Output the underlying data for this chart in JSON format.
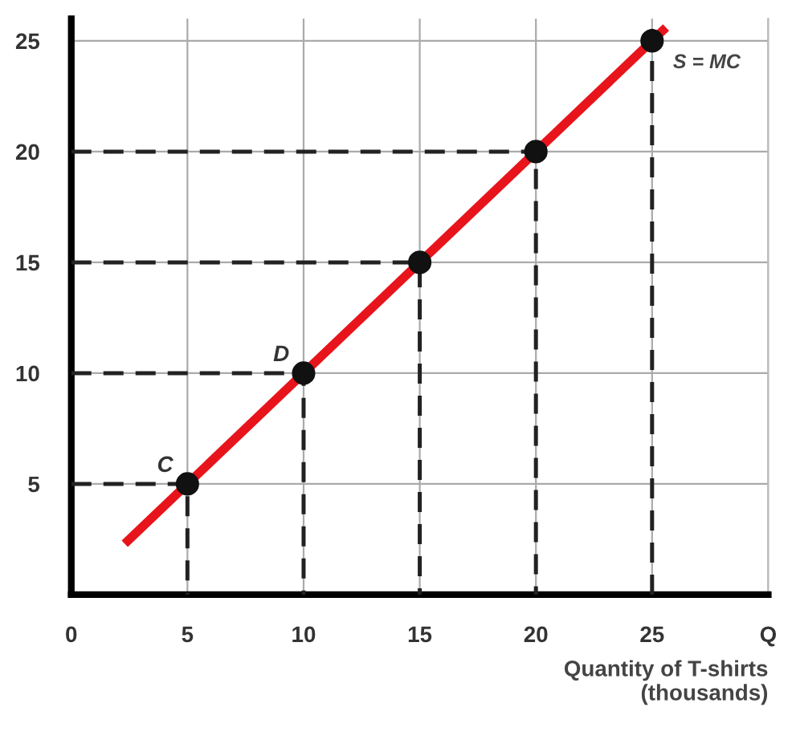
{
  "chart_data": {
    "type": "line",
    "xlabel": "Quantity of T-shirts\n(thousands)",
    "xlim": [
      0,
      30
    ],
    "ylim": [
      0,
      26
    ],
    "xticks": [
      0,
      5,
      10,
      15,
      20,
      25,
      {
        "value": 30,
        "label": "Q"
      }
    ],
    "yticks": [
      5,
      10,
      15,
      20,
      25
    ],
    "grid": true,
    "series": [
      {
        "name": "S = MC",
        "color": "#e8141c",
        "x": [
          2.3,
          25.6
        ],
        "values": [
          2.3,
          25.6
        ],
        "marker": "none",
        "line_style": "solid"
      },
      {
        "type": "line",
        "color": "#222222",
        "x": [
          0,
          5,
          5
        ],
        "values": [
          5,
          5,
          0
        ],
        "marker": "none",
        "line_style": "dashed"
      },
      {
        "type": "line",
        "color": "#222222",
        "x": [
          0,
          10,
          10
        ],
        "values": [
          10,
          10,
          0
        ],
        "marker": "none",
        "line_style": "dashed"
      },
      {
        "type": "line",
        "color": "#222222",
        "x": [
          0,
          15,
          15
        ],
        "values": [
          15,
          15,
          0
        ],
        "marker": "none",
        "line_style": "dashed"
      },
      {
        "type": "line",
        "color": "#222222",
        "x": [
          0,
          20,
          20
        ],
        "values": [
          20,
          20,
          0
        ],
        "marker": "none",
        "line_style": "dashed"
      },
      {
        "type": "line",
        "color": "#222222",
        "x": [
          25,
          25
        ],
        "values": [
          0,
          26
        ],
        "marker": "none",
        "line_style": "dashed"
      },
      {
        "type": "scatter",
        "color": "#111111",
        "x": [
          5,
          10,
          15,
          20,
          25
        ],
        "values": [
          5,
          10,
          15,
          20,
          25
        ],
        "marker": "circle"
      }
    ],
    "annotations": [
      {
        "text": "C",
        "x": 5,
        "y": 5
      },
      {
        "text": "D",
        "x": 10,
        "y": 10
      }
    ]
  }
}
